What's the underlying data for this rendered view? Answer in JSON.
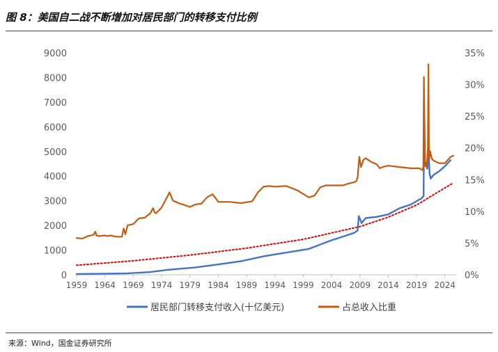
{
  "header": {
    "title": "图 8：美国自二战不断增加对居民部门的转移支付比例"
  },
  "footer": {
    "source": "来源：Wind，国金证券研究所"
  },
  "colors": {
    "transfer_income": "#4472C4",
    "share_of_income": "#C55A11",
    "trend": "#E00000"
  },
  "chart_data": {
    "type": "line",
    "title": "",
    "xlabel": "",
    "ylabel": "",
    "ylabel_right": "",
    "x_ticks": [
      "1959",
      "1964",
      "1969",
      "1974",
      "1979",
      "1984",
      "1989",
      "1994",
      "1999",
      "2004",
      "2009",
      "2014",
      "2019",
      "2024"
    ],
    "y_ticks_left": [
      "0",
      "1000",
      "2000",
      "3000",
      "4000",
      "5000",
      "6000",
      "7000",
      "8000",
      "9000"
    ],
    "y_ticks_right": [
      "0%",
      "5%",
      "10%",
      "15%",
      "20%",
      "25%",
      "30%",
      "35%"
    ],
    "xlim": [
      1959,
      2026
    ],
    "ylim_left": [
      0,
      9000
    ],
    "ylim_right": [
      0,
      0.35
    ],
    "legend_position": "bottom",
    "grid": false,
    "series": [
      {
        "name": "居民部门转移支付收入(十亿美元)",
        "axis": "left",
        "style": "solid",
        "x": [
          1959,
          1963,
          1968,
          1972,
          1975,
          1980,
          1984,
          1988,
          1992,
          1996,
          2000,
          2004,
          2006,
          2008,
          2008.6,
          2008.8,
          2009.3,
          2010,
          2012,
          2014,
          2016,
          2018,
          2019.5,
          2019.9,
          2020.25,
          2020.3,
          2020.5,
          2020.9,
          2021.1,
          2021.2,
          2021.3,
          2021.5,
          2022,
          2023,
          2024,
          2025
        ],
        "y": [
          30,
          40,
          60,
          110,
          200,
          300,
          420,
          550,
          750,
          900,
          1050,
          1400,
          1550,
          1700,
          1800,
          2380,
          2100,
          2300,
          2350,
          2450,
          2700,
          2850,
          3050,
          3100,
          3200,
          5300,
          4600,
          4300,
          5000,
          4600,
          4100,
          3900,
          4050,
          4200,
          4400,
          4650
        ]
      },
      {
        "name": "占总收入比重",
        "axis": "right",
        "style": "solid",
        "x": [
          1959,
          1960,
          1961,
          1962,
          1962.3,
          1962.5,
          1963,
          1964,
          1964.5,
          1965,
          1966,
          1967,
          1967.3,
          1967.6,
          1968,
          1969,
          1970,
          1971,
          1972,
          1972.5,
          1972.8,
          1973,
          1974,
          1975,
          1975.4,
          1976,
          1977,
          1978,
          1979,
          1980,
          1981,
          1982,
          1983,
          1983.5,
          1984,
          1986,
          1988,
          1990,
          1991,
          1992,
          1993,
          1994,
          1996,
          1998,
          2000,
          2001,
          2002,
          2003,
          2004,
          2005,
          2006,
          2007,
          2008,
          2008.4,
          2008.6,
          2008.9,
          2009.2,
          2009.6,
          2010,
          2011,
          2012,
          2012.5,
          2013,
          2014,
          2016,
          2018,
          2019.5,
          2020.0,
          2020.2,
          2020.3,
          2020.5,
          2020.8,
          2021.0,
          2021.1,
          2021.2,
          2021.4,
          2021.7,
          2022,
          2023,
          2024,
          2025,
          2025.5
        ],
        "y": [
          0.058,
          0.057,
          0.061,
          0.063,
          0.068,
          0.062,
          0.061,
          0.062,
          0.061,
          0.062,
          0.06,
          0.06,
          0.073,
          0.064,
          0.078,
          0.08,
          0.089,
          0.09,
          0.097,
          0.105,
          0.098,
          0.097,
          0.106,
          0.123,
          0.13,
          0.117,
          0.113,
          0.11,
          0.107,
          0.111,
          0.112,
          0.122,
          0.127,
          0.121,
          0.115,
          0.115,
          0.113,
          0.116,
          0.13,
          0.139,
          0.14,
          0.139,
          0.14,
          0.133,
          0.122,
          0.125,
          0.138,
          0.141,
          0.141,
          0.141,
          0.141,
          0.144,
          0.146,
          0.148,
          0.154,
          0.186,
          0.17,
          0.181,
          0.184,
          0.178,
          0.174,
          0.168,
          0.17,
          0.172,
          0.17,
          0.168,
          0.168,
          0.165,
          0.17,
          0.312,
          0.172,
          0.17,
          0.2,
          0.332,
          0.18,
          0.195,
          0.183,
          0.18,
          0.176,
          0.176,
          0.186,
          0.188
        ]
      },
      {
        "name": "",
        "axis": "right",
        "style": "dotted",
        "x": [
          1959,
          1969,
          1979,
          1989,
          1999,
          2009,
          2014,
          2019,
          2024,
          2025.5
        ],
        "y": [
          0.015,
          0.022,
          0.031,
          0.042,
          0.056,
          0.076,
          0.091,
          0.11,
          0.137,
          0.145
        ]
      }
    ]
  }
}
